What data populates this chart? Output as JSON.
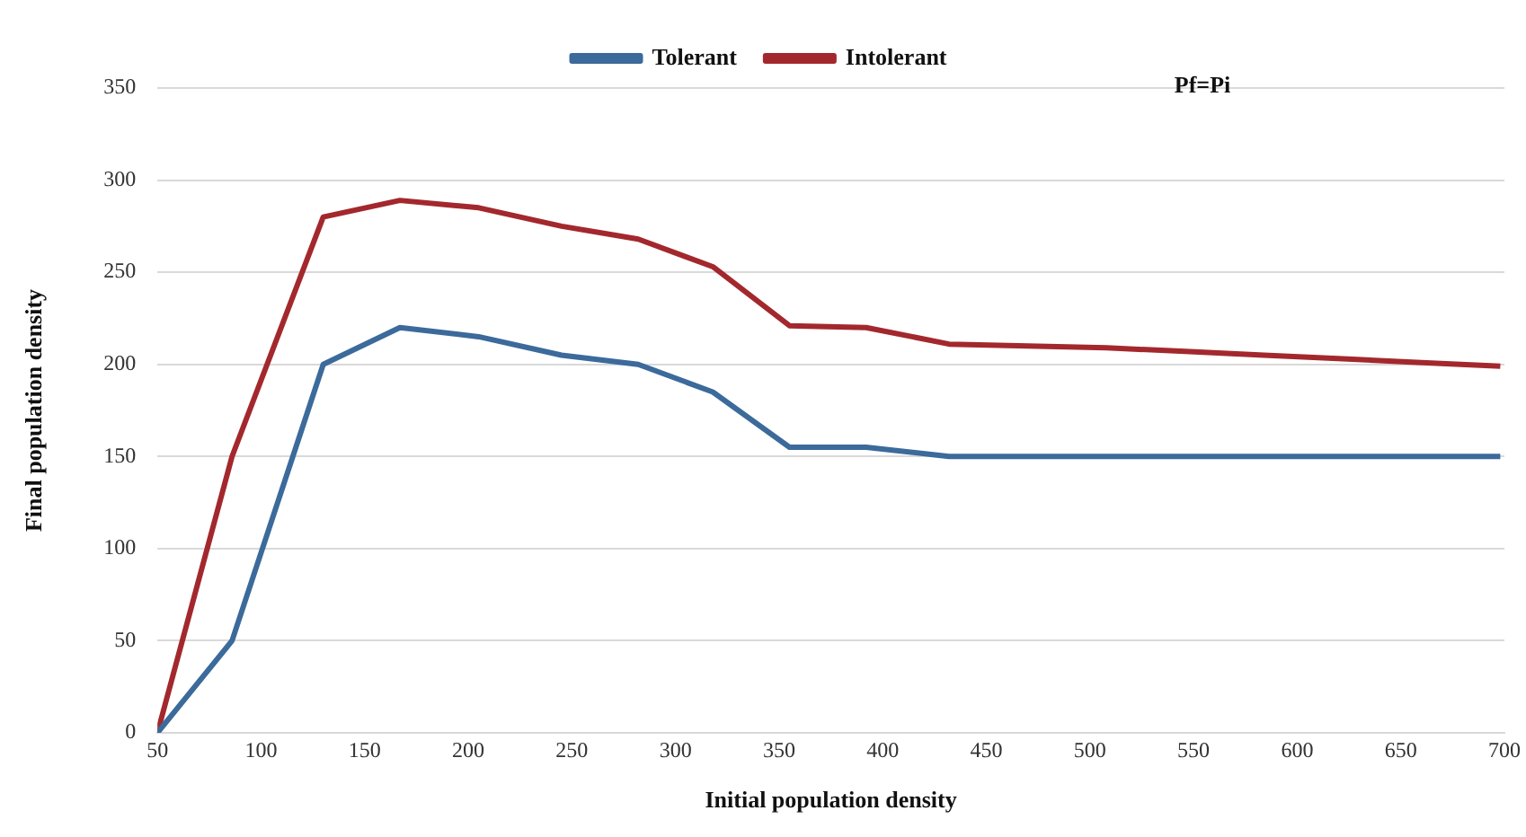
{
  "chart_data": {
    "type": "line",
    "xlabel": "Initial population density",
    "ylabel": "Final population density",
    "annotations": [
      "Pf=Pi"
    ],
    "x": [
      50,
      86,
      130,
      167,
      205,
      245,
      282,
      318,
      355,
      392,
      432,
      470,
      508,
      546,
      584,
      622,
      660,
      698
    ],
    "series": [
      {
        "name": "Tolerant",
        "color": "#3b6a9b",
        "values": [
          0,
          50,
          200,
          220,
          215,
          205,
          200,
          185,
          155,
          155,
          150,
          150,
          150,
          150,
          150,
          150,
          150,
          150
        ]
      },
      {
        "name": "Intolerant",
        "color": "#a3282d",
        "values": [
          0,
          150,
          280,
          289,
          285,
          275,
          268,
          253,
          221,
          220,
          211,
          210,
          209,
          207,
          205,
          203,
          201,
          199
        ]
      }
    ],
    "xlim": [
      50,
      700
    ],
    "xticks": [
      50,
      100,
      150,
      200,
      250,
      300,
      350,
      400,
      450,
      500,
      550,
      600,
      650,
      700
    ],
    "ylim": [
      0,
      350
    ],
    "yticks": [
      0,
      50,
      100,
      150,
      200,
      250,
      300,
      350
    ],
    "grid": "y",
    "legend": "top",
    "marker": "none",
    "line_style": "solid"
  }
}
